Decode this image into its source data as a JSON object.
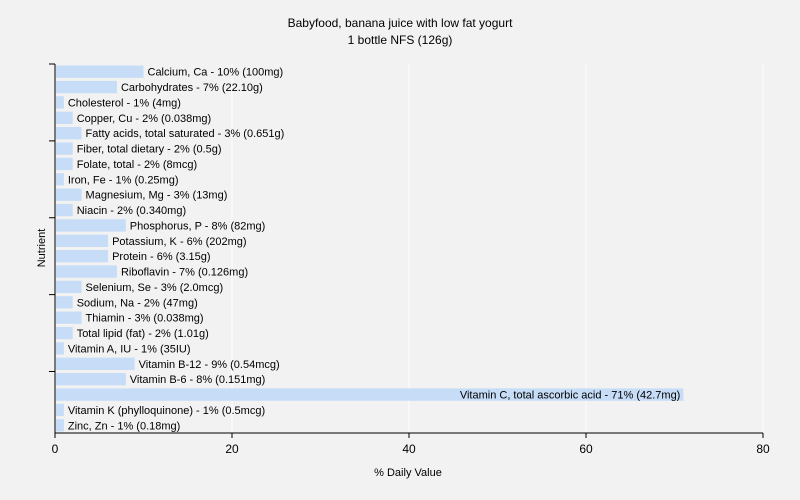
{
  "chart_data": {
    "type": "bar",
    "orientation": "horizontal",
    "title": "Babyfood, banana juice with low fat yogurt",
    "subtitle": "1 bottle NFS (126g)",
    "xlabel": "% Daily Value",
    "ylabel": "Nutrient",
    "xlim": [
      0,
      80
    ],
    "xticks": [
      0,
      20,
      40,
      60,
      80
    ],
    "grid": true,
    "colors": {
      "bar": "#c6dcf7",
      "grid": "#ffffff",
      "plot_bg": "#f2f2f2",
      "axis": "#000000"
    },
    "categories": [
      "Calcium, Ca",
      "Carbohydrates",
      "Cholesterol",
      "Copper, Cu",
      "Fatty acids, total saturated",
      "Fiber, total dietary",
      "Folate, total",
      "Iron, Fe",
      "Magnesium, Mg",
      "Niacin",
      "Phosphorus, P",
      "Potassium, K",
      "Protein",
      "Riboflavin",
      "Selenium, Se",
      "Sodium, Na",
      "Thiamin",
      "Total lipid (fat)",
      "Vitamin A, IU",
      "Vitamin B-12",
      "Vitamin B-6",
      "Vitamin C, total ascorbic acid",
      "Vitamin K (phylloquinone)",
      "Zinc, Zn"
    ],
    "values": [
      10,
      7,
      1,
      2,
      3,
      2,
      2,
      1,
      3,
      2,
      8,
      6,
      6,
      7,
      3,
      2,
      3,
      2,
      1,
      9,
      8,
      71,
      1,
      1
    ],
    "labels": [
      "Calcium, Ca - 10% (100mg)",
      "Carbohydrates - 7% (22.10g)",
      "Cholesterol - 1% (4mg)",
      "Copper, Cu - 2% (0.038mg)",
      "Fatty acids, total saturated - 3% (0.651g)",
      "Fiber, total dietary - 2% (0.5g)",
      "Folate, total - 2% (8mcg)",
      "Iron, Fe - 1% (0.25mg)",
      "Magnesium, Mg - 3% (13mg)",
      "Niacin - 2% (0.340mg)",
      "Phosphorus, P - 8% (82mg)",
      "Potassium, K - 6% (202mg)",
      "Protein - 6% (3.15g)",
      "Riboflavin - 7% (0.126mg)",
      "Selenium, Se - 3% (2.0mcg)",
      "Sodium, Na - 2% (47mg)",
      "Thiamin - 3% (0.038mg)",
      "Total lipid (fat) - 2% (1.01g)",
      "Vitamin A, IU - 1% (35IU)",
      "Vitamin B-12 - 9% (0.54mcg)",
      "Vitamin B-6 - 8% (0.151mg)",
      "Vitamin C, total ascorbic acid - 71% (42.7mg)",
      "Vitamin K (phylloquinone) - 1% (0.5mcg)",
      "Zinc, Zn - 1% (0.18mg)"
    ]
  }
}
